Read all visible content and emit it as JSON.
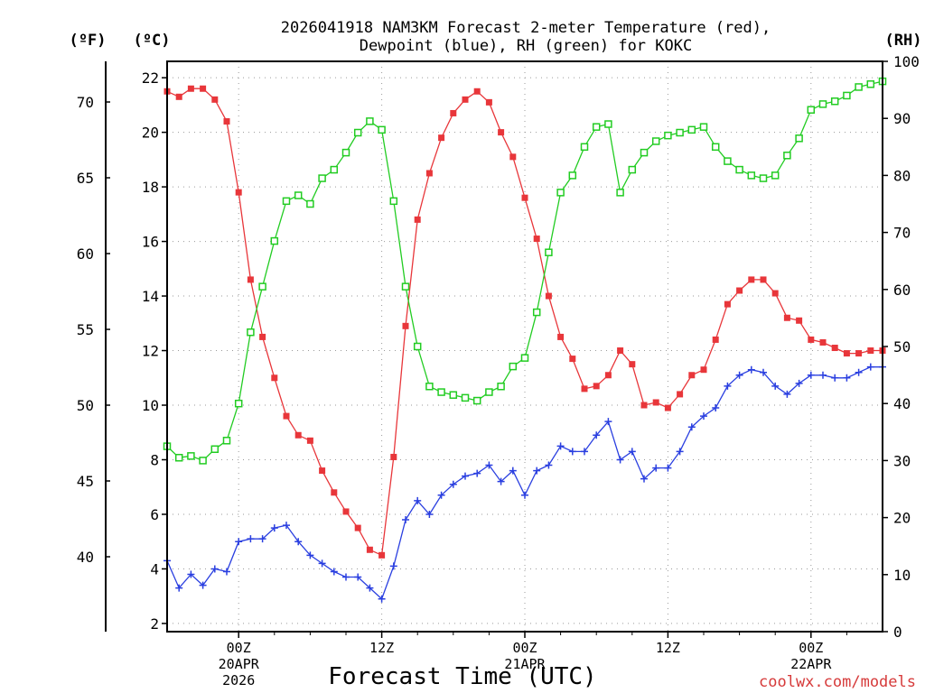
{
  "chart_data": {
    "type": "line",
    "title": [
      "2026041918 NAM3KM Forecast 2-meter Temperature (red),",
      "Dewpoint (blue), RH (green) for KOKC"
    ],
    "xlabel": "Forecast Time (UTC)",
    "credit": "coolwx.com/models",
    "left_axis": {
      "celsius_label": "(ºC)",
      "fahrenheit_label": "(ºF)",
      "ylim_c": [
        1.7,
        22.6
      ],
      "ticks_c": [
        "2",
        "4",
        "6",
        "8",
        "10",
        "12",
        "14",
        "16",
        "18",
        "20",
        "22"
      ],
      "ticks_f": [
        "40",
        "45",
        "50",
        "55",
        "60",
        "65",
        "70"
      ]
    },
    "right_axis": {
      "label": "(RH)",
      "ylim": [
        0,
        100
      ],
      "ticks": [
        "0",
        "10",
        "20",
        "30",
        "40",
        "50",
        "60",
        "70",
        "80",
        "90",
        "100"
      ]
    },
    "x_axis": {
      "range_hours": [
        -6,
        54
      ],
      "ticks": [
        {
          "hour": 0,
          "label": "00Z",
          "date": "20APR",
          "year": "2026"
        },
        {
          "hour": 12,
          "label": "12Z",
          "date": "",
          "year": ""
        },
        {
          "hour": 24,
          "label": "00Z",
          "date": "21APR",
          "year": ""
        },
        {
          "hour": 36,
          "label": "12Z",
          "date": "",
          "year": ""
        },
        {
          "hour": 48,
          "label": "00Z",
          "date": "22APR",
          "year": ""
        }
      ]
    },
    "series": [
      {
        "name": "Temperature",
        "units": "C",
        "color": "#e8363a",
        "marker": "filled-square",
        "x": [
          -6,
          -5,
          -4,
          -3,
          -2,
          -1,
          0,
          1,
          2,
          3,
          4,
          5,
          6,
          7,
          8,
          9,
          10,
          11,
          12,
          13,
          14,
          15,
          16,
          17,
          18,
          19,
          20,
          21,
          22,
          23,
          24,
          25,
          26,
          27,
          28,
          29,
          30,
          31,
          32,
          33,
          34,
          35,
          36,
          37,
          38,
          39,
          40,
          41,
          42,
          43,
          44,
          45,
          46,
          47,
          48,
          49,
          50,
          51,
          52,
          53,
          54
        ],
        "values": [
          21.5,
          21.3,
          21.6,
          21.6,
          21.2,
          20.4,
          17.8,
          14.6,
          12.5,
          11.0,
          9.6,
          8.9,
          8.7,
          7.6,
          6.8,
          6.1,
          5.5,
          4.7,
          4.5,
          8.1,
          12.9,
          16.8,
          18.5,
          19.8,
          20.7,
          21.2,
          21.5,
          21.1,
          20.0,
          19.1,
          17.6,
          16.1,
          14.0,
          12.5,
          11.7,
          10.6,
          10.7,
          11.1,
          12.0,
          11.5,
          10.0,
          10.1,
          9.9,
          10.4,
          11.1,
          11.3,
          12.4,
          13.7,
          14.2,
          14.6,
          14.6,
          14.1,
          13.2,
          13.1,
          12.4,
          12.3,
          12.1,
          11.9,
          11.9,
          12.0,
          12.0
        ]
      },
      {
        "name": "Dewpoint",
        "units": "C",
        "color": "#2a3fe0",
        "marker": "plus",
        "x": [
          -6,
          -5,
          -4,
          -3,
          -2,
          -1,
          0,
          1,
          2,
          3,
          4,
          5,
          6,
          7,
          8,
          9,
          10,
          11,
          12,
          13,
          14,
          15,
          16,
          17,
          18,
          19,
          20,
          21,
          22,
          23,
          24,
          25,
          26,
          27,
          28,
          29,
          30,
          31,
          32,
          33,
          34,
          35,
          36,
          37,
          38,
          39,
          40,
          41,
          42,
          43,
          44,
          45,
          46,
          47,
          48,
          49,
          50,
          51,
          52,
          53,
          54
        ],
        "values": [
          4.3,
          3.3,
          3.8,
          3.4,
          4.0,
          3.9,
          5.0,
          5.1,
          5.1,
          5.5,
          5.6,
          5.0,
          4.5,
          4.2,
          3.9,
          3.7,
          3.7,
          3.3,
          2.9,
          4.1,
          5.8,
          6.5,
          6.0,
          6.7,
          7.1,
          7.4,
          7.5,
          7.8,
          7.2,
          7.6,
          6.7,
          7.6,
          7.8,
          8.5,
          8.3,
          8.3,
          8.9,
          9.4,
          8.0,
          8.3,
          7.3,
          7.7,
          7.7,
          8.3,
          9.2,
          9.6,
          9.9,
          10.7,
          11.1,
          11.3,
          11.2,
          10.7,
          10.4,
          10.8,
          11.1,
          11.1,
          11.0,
          11.0,
          11.2,
          11.4,
          11.4
        ]
      },
      {
        "name": "Relative Humidity",
        "units": "%",
        "color": "#22cc22",
        "marker": "open-square",
        "x": [
          -6,
          -5,
          -4,
          -3,
          -2,
          -1,
          0,
          1,
          2,
          3,
          4,
          5,
          6,
          7,
          8,
          9,
          10,
          11,
          12,
          13,
          14,
          15,
          16,
          17,
          18,
          19,
          20,
          21,
          22,
          23,
          24,
          25,
          26,
          27,
          28,
          29,
          30,
          31,
          32,
          33,
          34,
          35,
          36,
          37,
          38,
          39,
          40,
          41,
          42,
          43,
          44,
          45,
          46,
          47,
          48,
          49,
          50,
          51,
          52,
          53,
          54
        ],
        "values": [
          32.5,
          30.5,
          30.8,
          30.0,
          32.0,
          33.5,
          40.0,
          52.5,
          60.5,
          68.5,
          75.5,
          76.5,
          75.0,
          79.5,
          81.0,
          84.0,
          87.5,
          89.5,
          88.0,
          75.5,
          60.5,
          50.0,
          43.0,
          42.0,
          41.5,
          41.0,
          40.5,
          42.0,
          43.0,
          46.5,
          48.0,
          56.0,
          66.5,
          77.0,
          80.0,
          85.0,
          88.5,
          89.0,
          77.0,
          81.0,
          84.0,
          86.0,
          87.0,
          87.5,
          88.0,
          88.5,
          85.0,
          82.5,
          81.0,
          80.0,
          79.5,
          80.0,
          83.5,
          86.5,
          91.5,
          92.5,
          93.0,
          94.0,
          95.5,
          96.0,
          96.5
        ]
      }
    ]
  }
}
